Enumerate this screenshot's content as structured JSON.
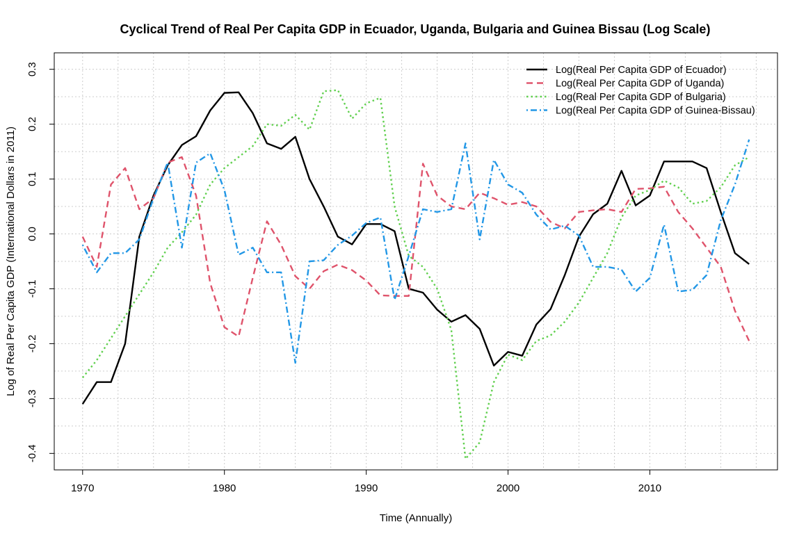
{
  "chart_data": {
    "type": "line",
    "title": "Cyclical Trend of Real Per Capita GDP in Ecuador, Uganda, Bulgaria and Guinea Bissau (Log Scale)",
    "xlabel": "Time (Annually)",
    "ylabel": "Log of Real Per Capita GDP (International Dollars in 2011)",
    "xlim": [
      1968,
      2019
    ],
    "ylim": [
      -0.43,
      0.33
    ],
    "x_ticks": [
      1970,
      1980,
      1990,
      2000,
      2010
    ],
    "x_tick_labels": [
      "1970",
      "1980",
      "1990",
      "2000",
      "2010"
    ],
    "y_ticks": [
      -0.4,
      -0.3,
      -0.2,
      -0.1,
      0.0,
      0.1,
      0.2,
      0.3
    ],
    "y_tick_labels": [
      "-0.4",
      "-0.3",
      "-0.2",
      "-0.1",
      "0.0",
      "0.1",
      "0.2",
      "0.3"
    ],
    "grid": true,
    "legend_position": "top-right",
    "x": [
      1970,
      1971,
      1972,
      1973,
      1974,
      1975,
      1976,
      1977,
      1978,
      1979,
      1980,
      1981,
      1982,
      1983,
      1984,
      1985,
      1986,
      1987,
      1988,
      1989,
      1990,
      1991,
      1992,
      1993,
      1994,
      1995,
      1996,
      1997,
      1998,
      1999,
      2000,
      2001,
      2002,
      2003,
      2004,
      2005,
      2006,
      2007,
      2008,
      2009,
      2010,
      2011,
      2012,
      2013,
      2014,
      2015,
      2016,
      2017
    ],
    "series": [
      {
        "name": "Log(Real Per Capita GDP of Ecuador)",
        "color": "#000000",
        "dash": "solid",
        "values": [
          -0.31,
          -0.27,
          -0.27,
          -0.2,
          -0.005,
          0.07,
          0.125,
          0.162,
          0.178,
          0.225,
          0.257,
          0.258,
          0.22,
          0.165,
          0.155,
          0.177,
          0.1,
          0.05,
          -0.005,
          -0.019,
          0.018,
          0.018,
          0.005,
          -0.1,
          -0.107,
          -0.138,
          -0.16,
          -0.148,
          -0.173,
          -0.24,
          -0.215,
          -0.222,
          -0.165,
          -0.137,
          -0.075,
          -0.005,
          0.036,
          0.055,
          0.115,
          0.052,
          0.07,
          0.132,
          0.132,
          0.132,
          0.12,
          0.04,
          -0.035,
          -0.055
        ]
      },
      {
        "name": "Log(Real Per Capita GDP of Uganda)",
        "color": "#DF536B",
        "dash": "dashed",
        "values": [
          -0.005,
          -0.06,
          0.09,
          0.12,
          0.045,
          0.065,
          0.13,
          0.14,
          0.07,
          -0.09,
          -0.17,
          -0.187,
          -0.08,
          0.023,
          -0.02,
          -0.077,
          -0.1,
          -0.068,
          -0.056,
          -0.066,
          -0.085,
          -0.112,
          -0.113,
          -0.113,
          0.128,
          0.07,
          0.05,
          0.045,
          0.075,
          0.065,
          0.053,
          0.058,
          0.05,
          0.022,
          0.01,
          0.04,
          0.043,
          0.045,
          0.04,
          0.082,
          0.083,
          0.086,
          0.04,
          0.01,
          -0.025,
          -0.06,
          -0.14,
          -0.195
        ]
      },
      {
        "name": "Log(Real Per Capita GDP of Bulgaria)",
        "color": "#61D04F",
        "dash": "dotted",
        "values": [
          -0.262,
          -0.23,
          -0.19,
          -0.15,
          -0.11,
          -0.07,
          -0.025,
          0.003,
          0.035,
          0.09,
          0.12,
          0.14,
          0.16,
          0.2,
          0.197,
          0.217,
          0.19,
          0.26,
          0.262,
          0.21,
          0.238,
          0.248,
          0.05,
          -0.04,
          -0.06,
          -0.1,
          -0.175,
          -0.41,
          -0.38,
          -0.27,
          -0.22,
          -0.23,
          -0.195,
          -0.185,
          -0.16,
          -0.125,
          -0.08,
          -0.035,
          0.03,
          0.07,
          0.08,
          0.097,
          0.085,
          0.055,
          0.06,
          0.085,
          0.125,
          0.14
        ]
      },
      {
        "name": "Log(Real Per Capita GDP of Guinea-Bissau)",
        "color": "#2297E6",
        "dash": "dashdot",
        "values": [
          -0.02,
          -0.07,
          -0.035,
          -0.035,
          -0.01,
          0.065,
          0.13,
          -0.025,
          0.13,
          0.147,
          0.08,
          -0.038,
          -0.025,
          -0.07,
          -0.07,
          -0.235,
          -0.05,
          -0.048,
          -0.02,
          -0.003,
          0.02,
          0.03,
          -0.12,
          -0.04,
          0.045,
          0.04,
          0.045,
          0.165,
          -0.01,
          0.135,
          0.09,
          0.075,
          0.035,
          0.008,
          0.015,
          -0.003,
          -0.06,
          -0.06,
          -0.065,
          -0.105,
          -0.08,
          0.017,
          -0.105,
          -0.102,
          -0.075,
          0.025,
          0.09,
          0.172
        ]
      }
    ]
  }
}
